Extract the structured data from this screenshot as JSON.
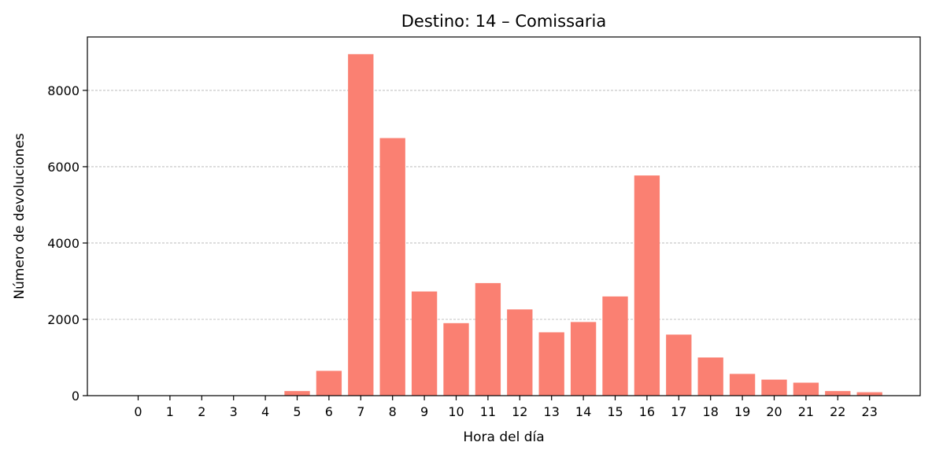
{
  "chart_data": {
    "type": "bar",
    "title": "Destino: 14 – Comissaria",
    "xlabel": "Hora del día",
    "ylabel": "Número de devoluciones",
    "categories": [
      "0",
      "1",
      "2",
      "3",
      "4",
      "5",
      "6",
      "7",
      "8",
      "9",
      "10",
      "11",
      "12",
      "13",
      "14",
      "15",
      "16",
      "17",
      "18",
      "19",
      "20",
      "21",
      "22",
      "23"
    ],
    "values": [
      5,
      3,
      2,
      2,
      8,
      120,
      650,
      8950,
      6750,
      2730,
      1900,
      2950,
      2260,
      1660,
      1930,
      2600,
      5770,
      1600,
      1000,
      570,
      420,
      340,
      120,
      90
    ],
    "yticks": [
      0,
      2000,
      4000,
      6000,
      8000
    ],
    "ylim": [
      0,
      9400
    ],
    "grid": "y-dashed",
    "bar_color": "#FA8072"
  }
}
